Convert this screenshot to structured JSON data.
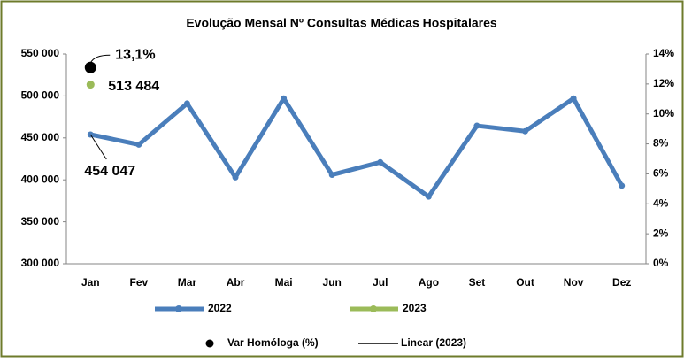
{
  "chart_data": {
    "type": "line",
    "title": "Evolução Mensal Nº Consultas Médicas Hospitalares",
    "categories": [
      "Jan",
      "Fev",
      "Mar",
      "Abr",
      "Mai",
      "Jun",
      "Jul",
      "Ago",
      "Set",
      "Out",
      "Nov",
      "Dez"
    ],
    "series": [
      {
        "name": "2022",
        "color": "#4a7ebb",
        "values": [
          454047,
          442000,
          491000,
          403000,
          497000,
          406000,
          421000,
          380000,
          464500,
          458000,
          497000,
          393000
        ],
        "value_labels": [
          "454 047",
          null,
          null,
          null,
          null,
          null,
          null,
          null,
          null,
          null,
          null,
          null
        ]
      },
      {
        "name": "2023",
        "color": "#9bbb59",
        "values": [
          513484,
          null,
          null,
          null,
          null,
          null,
          null,
          null,
          null,
          null,
          null,
          null
        ],
        "value_labels": [
          "513 484",
          null,
          null,
          null,
          null,
          null,
          null,
          null,
          null,
          null,
          null,
          null
        ]
      },
      {
        "name": "Var Homóloga (%)",
        "color": "#000000",
        "axis": "y2",
        "values": [
          13.1,
          null,
          null,
          null,
          null,
          null,
          null,
          null,
          null,
          null,
          null,
          null
        ],
        "value_labels": [
          "13,1%",
          null,
          null,
          null,
          null,
          null,
          null,
          null,
          null,
          null,
          null,
          null
        ]
      }
    ],
    "trendline": {
      "name": "Linear (2023)",
      "color": "#000000"
    },
    "ylim": [
      300000,
      550000
    ],
    "yticks": [
      {
        "value": 300000,
        "label": "300 000"
      },
      {
        "value": 350000,
        "label": "350 000"
      },
      {
        "value": 400000,
        "label": "400 000"
      },
      {
        "value": 450000,
        "label": "450 000"
      },
      {
        "value": 500000,
        "label": "500 000"
      },
      {
        "value": 550000,
        "label": "550 000"
      }
    ],
    "y2lim": [
      0,
      14
    ],
    "y2ticks": [
      {
        "value": 0,
        "label": "0%"
      },
      {
        "value": 2,
        "label": "2%"
      },
      {
        "value": 4,
        "label": "4%"
      },
      {
        "value": 6,
        "label": "6%"
      },
      {
        "value": 8,
        "label": "8%"
      },
      {
        "value": 10,
        "label": "10%"
      },
      {
        "value": 12,
        "label": "12%"
      },
      {
        "value": 14,
        "label": "14%"
      }
    ],
    "legend": "bottom",
    "grid": false
  }
}
